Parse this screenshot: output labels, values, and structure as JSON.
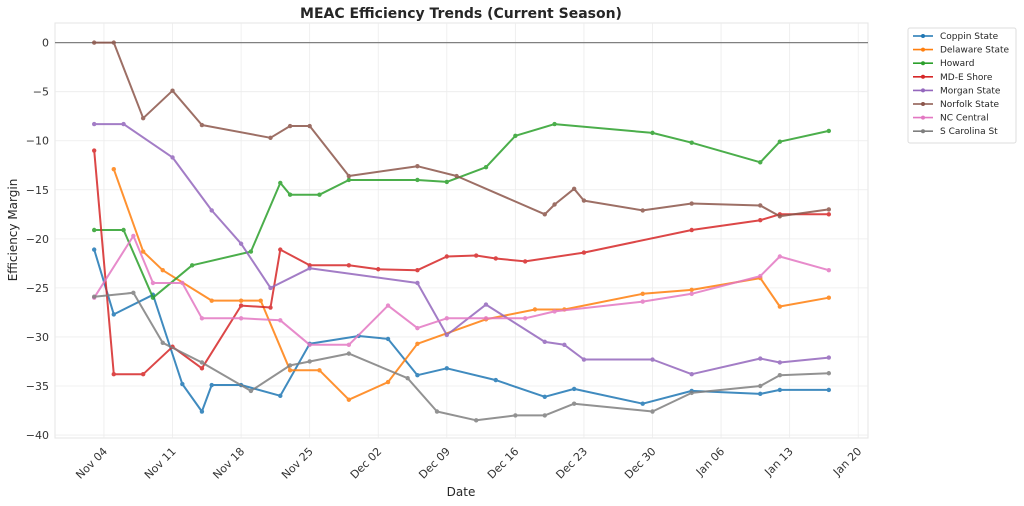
{
  "chart_data": {
    "type": "line",
    "title": "MEAC Efficiency Trends (Current Season)",
    "xlabel": "Date",
    "ylabel": "Efficiency Margin",
    "x_ticks": [
      "Nov 04",
      "Nov 11",
      "Nov 18",
      "Nov 25",
      "Dec 02",
      "Dec 09",
      "Dec 16",
      "Dec 23",
      "Dec 30",
      "Jan 06",
      "Jan 13",
      "Jan 20"
    ],
    "x_tick_dates": [
      "2024-11-04",
      "2024-11-11",
      "2024-11-18",
      "2024-11-25",
      "2024-12-02",
      "2024-12-09",
      "2024-12-16",
      "2024-12-23",
      "2024-12-30",
      "2025-01-06",
      "2025-01-13",
      "2025-01-20"
    ],
    "y_ticks": [
      0,
      -5,
      -10,
      -15,
      -20,
      -25,
      -30,
      -35,
      -40
    ],
    "y_tick_labels": [
      "0",
      "−5",
      "−10",
      "−15",
      "−20",
      "−25",
      "−30",
      "−35",
      "−40"
    ],
    "xlim": [
      "2024-10-30",
      "2025-01-21"
    ],
    "ylim": [
      -40.3,
      2.0
    ],
    "grid": true,
    "reference_line": 0,
    "legend_position": "outside-top-right",
    "series": [
      {
        "name": "Coppin State",
        "color": "#1f77b4",
        "points": [
          [
            "2024-11-03",
            -21.1
          ],
          [
            "2024-11-05",
            -27.7
          ],
          [
            "2024-11-09",
            -25.7
          ],
          [
            "2024-11-12",
            -34.8
          ],
          [
            "2024-11-14",
            -37.6
          ],
          [
            "2024-11-15",
            -34.9
          ],
          [
            "2024-11-18",
            -34.9
          ],
          [
            "2024-11-22",
            -36.0
          ],
          [
            "2024-11-25",
            -30.7
          ],
          [
            "2024-11-30",
            -29.9
          ],
          [
            "2024-12-03",
            -30.2
          ],
          [
            "2024-12-06",
            -33.9
          ],
          [
            "2024-12-09",
            -33.2
          ],
          [
            "2024-12-14",
            -34.4
          ],
          [
            "2024-12-19",
            -36.1
          ],
          [
            "2024-12-22",
            -35.3
          ],
          [
            "2024-12-29",
            -36.8
          ],
          [
            "2025-01-03",
            -35.5
          ],
          [
            "2025-01-10",
            -35.8
          ],
          [
            "2025-01-12",
            -35.4
          ],
          [
            "2025-01-17",
            -35.4
          ]
        ]
      },
      {
        "name": "Delaware State",
        "color": "#ff7f0e",
        "points": [
          [
            "2024-11-05",
            -12.9
          ],
          [
            "2024-11-08",
            -21.3
          ],
          [
            "2024-11-10",
            -23.2
          ],
          [
            "2024-11-15",
            -26.3
          ],
          [
            "2024-11-18",
            -26.3
          ],
          [
            "2024-11-20",
            -26.3
          ],
          [
            "2024-11-23",
            -33.4
          ],
          [
            "2024-11-26",
            -33.4
          ],
          [
            "2024-11-29",
            -36.4
          ],
          [
            "2024-12-03",
            -34.6
          ],
          [
            "2024-12-06",
            -30.7
          ],
          [
            "2024-12-13",
            -28.2
          ],
          [
            "2024-12-18",
            -27.2
          ],
          [
            "2024-12-21",
            -27.2
          ],
          [
            "2024-12-29",
            -25.6
          ],
          [
            "2025-01-03",
            -25.2
          ],
          [
            "2025-01-10",
            -24.0
          ],
          [
            "2025-01-12",
            -26.9
          ],
          [
            "2025-01-17",
            -26.0
          ]
        ]
      },
      {
        "name": "Howard",
        "color": "#2ca02c",
        "points": [
          [
            "2024-11-03",
            -19.1
          ],
          [
            "2024-11-06",
            -19.1
          ],
          [
            "2024-11-09",
            -26.0
          ],
          [
            "2024-11-13",
            -22.7
          ],
          [
            "2024-11-19",
            -21.3
          ],
          [
            "2024-11-22",
            -14.3
          ],
          [
            "2024-11-23",
            -15.5
          ],
          [
            "2024-11-26",
            -15.5
          ],
          [
            "2024-11-29",
            -14.0
          ],
          [
            "2024-12-06",
            -14.0
          ],
          [
            "2024-12-09",
            -14.2
          ],
          [
            "2024-12-13",
            -12.7
          ],
          [
            "2024-12-16",
            -9.5
          ],
          [
            "2024-12-20",
            -8.3
          ],
          [
            "2024-12-30",
            -9.2
          ],
          [
            "2025-01-03",
            -10.2
          ],
          [
            "2025-01-10",
            -12.2
          ],
          [
            "2025-01-12",
            -10.1
          ],
          [
            "2025-01-17",
            -9.0
          ]
        ]
      },
      {
        "name": "MD-E Shore",
        "color": "#d62728",
        "points": [
          [
            "2024-11-03",
            -11.0
          ],
          [
            "2024-11-05",
            -33.8
          ],
          [
            "2024-11-08",
            -33.8
          ],
          [
            "2024-11-11",
            -31.0
          ],
          [
            "2024-11-14",
            -33.2
          ],
          [
            "2024-11-18",
            -26.8
          ],
          [
            "2024-11-21",
            -27.0
          ],
          [
            "2024-11-22",
            -21.1
          ],
          [
            "2024-11-25",
            -22.7
          ],
          [
            "2024-11-29",
            -22.7
          ],
          [
            "2024-12-02",
            -23.1
          ],
          [
            "2024-12-06",
            -23.2
          ],
          [
            "2024-12-09",
            -21.8
          ],
          [
            "2024-12-12",
            -21.7
          ],
          [
            "2024-12-14",
            -22.0
          ],
          [
            "2024-12-17",
            -22.3
          ],
          [
            "2024-12-23",
            -21.4
          ],
          [
            "2025-01-03",
            -19.1
          ],
          [
            "2025-01-10",
            -18.1
          ],
          [
            "2025-01-12",
            -17.5
          ],
          [
            "2025-01-17",
            -17.5
          ]
        ]
      },
      {
        "name": "Morgan State",
        "color": "#9467bd",
        "points": [
          [
            "2024-11-03",
            -8.3
          ],
          [
            "2024-11-06",
            -8.3
          ],
          [
            "2024-11-11",
            -11.7
          ],
          [
            "2024-11-15",
            -17.1
          ],
          [
            "2024-11-18",
            -20.5
          ],
          [
            "2024-11-21",
            -25.0
          ],
          [
            "2024-11-25",
            -23.0
          ],
          [
            "2024-12-06",
            -24.5
          ],
          [
            "2024-12-09",
            -29.8
          ],
          [
            "2024-12-13",
            -26.7
          ],
          [
            "2024-12-19",
            -30.5
          ],
          [
            "2024-12-21",
            -30.8
          ],
          [
            "2024-12-23",
            -32.3
          ],
          [
            "2024-12-30",
            -32.3
          ],
          [
            "2025-01-03",
            -33.8
          ],
          [
            "2025-01-10",
            -32.2
          ],
          [
            "2025-01-12",
            -32.6
          ],
          [
            "2025-01-17",
            -32.1
          ]
        ]
      },
      {
        "name": "Norfolk State",
        "color": "#8c564b",
        "points": [
          [
            "2024-11-03",
            0.0
          ],
          [
            "2024-11-05",
            0.0
          ],
          [
            "2024-11-08",
            -7.7
          ],
          [
            "2024-11-11",
            -4.9
          ],
          [
            "2024-11-14",
            -8.4
          ],
          [
            "2024-11-21",
            -9.7
          ],
          [
            "2024-11-23",
            -8.5
          ],
          [
            "2024-11-25",
            -8.5
          ],
          [
            "2024-11-29",
            -13.6
          ],
          [
            "2024-12-06",
            -12.6
          ],
          [
            "2024-12-10",
            -13.6
          ],
          [
            "2024-12-19",
            -17.5
          ],
          [
            "2024-12-20",
            -16.5
          ],
          [
            "2024-12-22",
            -14.9
          ],
          [
            "2024-12-23",
            -16.1
          ],
          [
            "2024-12-29",
            -17.1
          ],
          [
            "2025-01-03",
            -16.4
          ],
          [
            "2025-01-10",
            -16.6
          ],
          [
            "2025-01-12",
            -17.7
          ],
          [
            "2025-01-17",
            -17.0
          ]
        ]
      },
      {
        "name": "NC Central",
        "color": "#e377c2",
        "points": [
          [
            "2024-11-03",
            -26.0
          ],
          [
            "2024-11-07",
            -19.7
          ],
          [
            "2024-11-09",
            -24.5
          ],
          [
            "2024-11-12",
            -24.5
          ],
          [
            "2024-11-14",
            -28.1
          ],
          [
            "2024-11-18",
            -28.1
          ],
          [
            "2024-11-22",
            -28.3
          ],
          [
            "2024-11-25",
            -30.8
          ],
          [
            "2024-11-29",
            -30.8
          ],
          [
            "2024-12-03",
            -26.8
          ],
          [
            "2024-12-06",
            -29.1
          ],
          [
            "2024-12-09",
            -28.1
          ],
          [
            "2024-12-13",
            -28.1
          ],
          [
            "2024-12-17",
            -28.1
          ],
          [
            "2024-12-20",
            -27.4
          ],
          [
            "2024-12-29",
            -26.4
          ],
          [
            "2025-01-03",
            -25.6
          ],
          [
            "2025-01-10",
            -23.8
          ],
          [
            "2025-01-12",
            -21.8
          ],
          [
            "2025-01-17",
            -23.2
          ]
        ]
      },
      {
        "name": "S Carolina St",
        "color": "#7f7f7f",
        "points": [
          [
            "2024-11-03",
            -25.9
          ],
          [
            "2024-11-07",
            -25.5
          ],
          [
            "2024-11-10",
            -30.6
          ],
          [
            "2024-11-14",
            -32.6
          ],
          [
            "2024-11-19",
            -35.5
          ],
          [
            "2024-11-23",
            -32.9
          ],
          [
            "2024-11-25",
            -32.5
          ],
          [
            "2024-11-29",
            -31.7
          ],
          [
            "2024-12-05",
            -34.2
          ],
          [
            "2024-12-08",
            -37.6
          ],
          [
            "2024-12-12",
            -38.5
          ],
          [
            "2024-12-16",
            -38.0
          ],
          [
            "2024-12-19",
            -38.0
          ],
          [
            "2024-12-22",
            -36.8
          ],
          [
            "2024-12-30",
            -37.6
          ],
          [
            "2025-01-03",
            -35.7
          ],
          [
            "2025-01-10",
            -35.0
          ],
          [
            "2025-01-12",
            -33.9
          ],
          [
            "2025-01-17",
            -33.7
          ]
        ]
      }
    ]
  }
}
